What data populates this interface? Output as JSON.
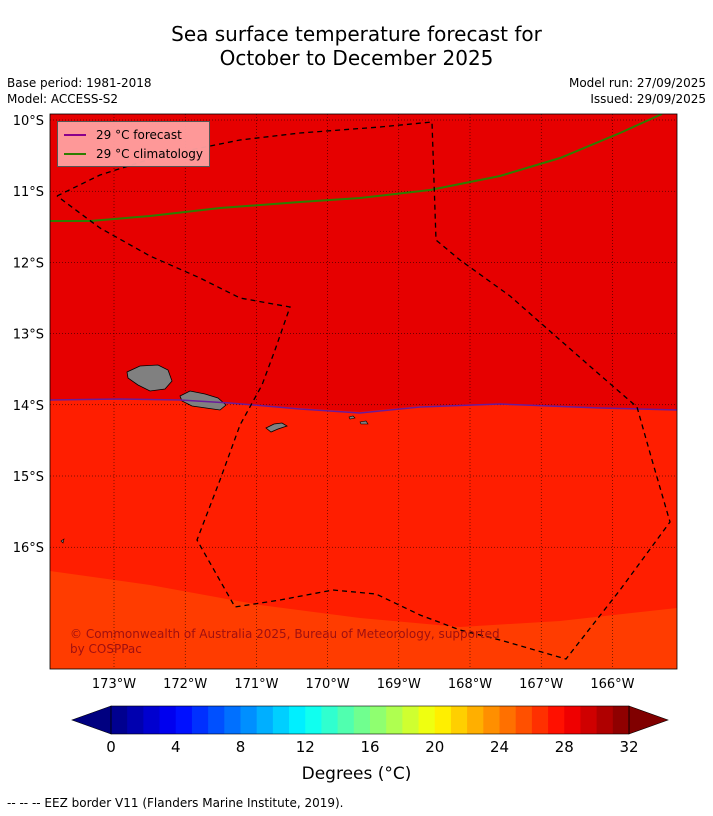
{
  "title_line1": "Sea surface temperature forecast for",
  "title_line2": "October to December 2025",
  "base_period": "Base period: 1981-2018",
  "model": "Model: ACCESS-S2",
  "model_run": "Model run: 27/09/2025",
  "issued": "Issued: 29/09/2025",
  "legend": [
    {
      "label": "29 °C  forecast",
      "color": "#8b008b"
    },
    {
      "label": "29 °C  climatology",
      "color": "#2e7d00"
    }
  ],
  "copyright": "© Commonwealth of Australia 2025, Bureau of Meteorology, supported by COSPPac",
  "colorbar_label": "Degrees (°C)",
  "footer": "--  --  -- EEZ border V11 (Flanders Marine Institute, 2019).",
  "map_data": {
    "lat_ticks": [
      "10°S",
      "11°S",
      "12°S",
      "13°S",
      "14°S",
      "15°S",
      "16°S"
    ],
    "lon_ticks": [
      "173°W",
      "172°W",
      "171°W",
      "170°W",
      "169°W",
      "168°W",
      "167°W",
      "166°W"
    ],
    "colorbar_ticks": [
      "0",
      "4",
      "8",
      "12",
      "16",
      "20",
      "24",
      "28",
      "32"
    ],
    "colorbar_range": [
      0,
      32
    ],
    "colorbar_step": 1,
    "colors": {
      "warmest_zone": "#e60000",
      "middle_zone": "#ff1e00",
      "southern_zone": "#ff3c00",
      "land": "#808080",
      "gridline": "#000000"
    }
  }
}
